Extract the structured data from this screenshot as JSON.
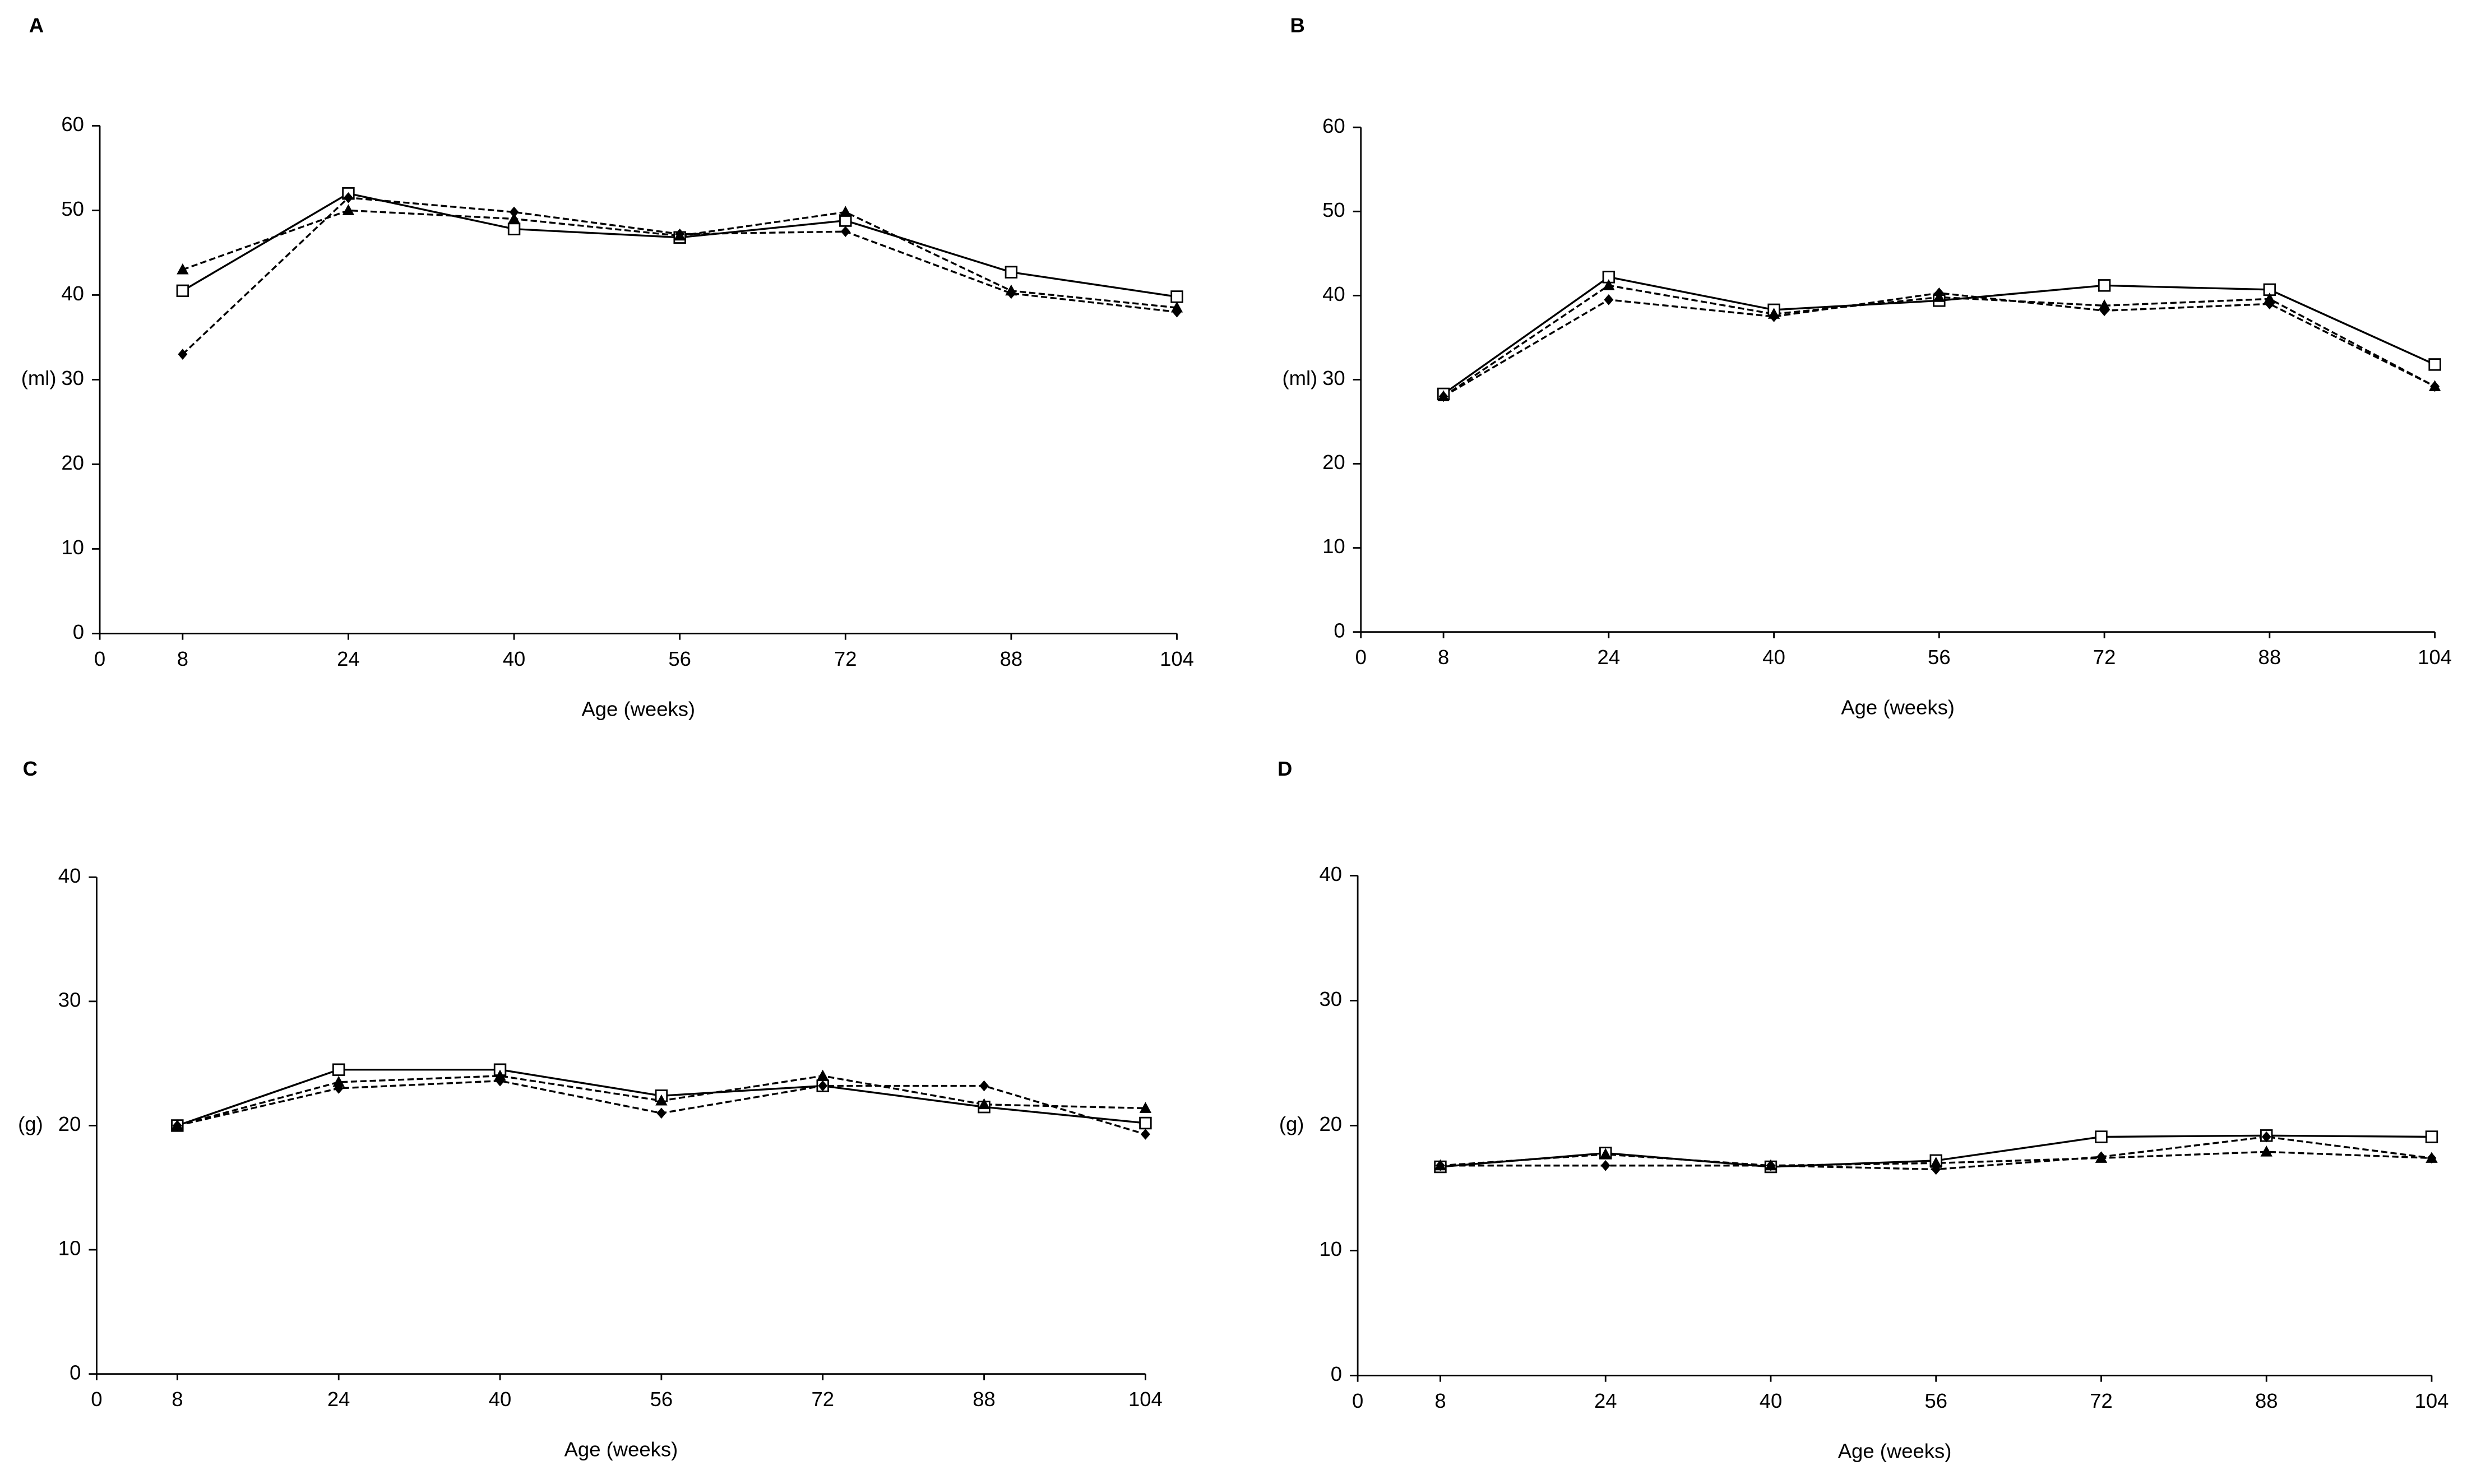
{
  "chart_data": [
    {
      "type": "line",
      "panel": "A",
      "ylabel": "(ml)",
      "xlabel": "Age (weeks)",
      "x": [
        8,
        24,
        40,
        56,
        72,
        88,
        104
      ],
      "xlim": [
        0,
        104
      ],
      "xticks": [
        0,
        8,
        24,
        40,
        56,
        72,
        88,
        104
      ],
      "ylim": [
        0,
        60
      ],
      "yticks": [
        0,
        10,
        20,
        30,
        40,
        50,
        60
      ],
      "series": [
        {
          "color": "#000000",
          "marker": "square",
          "dash": false,
          "values": [
            40.5,
            52,
            47.8,
            46.8,
            48.8,
            42.7,
            39.8
          ]
        },
        {
          "color": "#000000",
          "marker": "triangle",
          "dash": true,
          "values": [
            43,
            50,
            49,
            47,
            49.8,
            40.5,
            38.5
          ]
        },
        {
          "color": "#000000",
          "marker": "diamond",
          "dash": true,
          "values": [
            33,
            51.5,
            49.8,
            47.2,
            47.5,
            40.2,
            38
          ]
        }
      ]
    },
    {
      "type": "line",
      "panel": "B",
      "ylabel": "(ml)",
      "xlabel": "Age (weeks)",
      "x": [
        8,
        24,
        40,
        56,
        72,
        88,
        104
      ],
      "xlim": [
        0,
        104
      ],
      "xticks": [
        0,
        8,
        24,
        40,
        56,
        72,
        88,
        104
      ],
      "ylim": [
        0,
        60
      ],
      "yticks": [
        0,
        10,
        20,
        30,
        40,
        50,
        60
      ],
      "series": [
        {
          "color": "#000000",
          "marker": "square",
          "dash": false,
          "values": [
            28.3,
            42.2,
            38.3,
            39.4,
            41.2,
            40.7,
            31.8
          ]
        },
        {
          "color": "#000000",
          "marker": "triangle",
          "dash": true,
          "values": [
            28,
            41.2,
            37.8,
            39.8,
            38.8,
            39.6,
            29.2
          ]
        },
        {
          "color": "#000000",
          "marker": "diamond",
          "dash": true,
          "values": [
            28,
            39.5,
            37.5,
            40.3,
            38.2,
            39,
            29.2
          ]
        }
      ]
    },
    {
      "type": "line",
      "panel": "C",
      "ylabel": "(g)",
      "xlabel": "Age (weeks)",
      "x": [
        8,
        24,
        40,
        56,
        72,
        88,
        104
      ],
      "xlim": [
        0,
        104
      ],
      "xticks": [
        0,
        8,
        24,
        40,
        56,
        72,
        88,
        104
      ],
      "ylim": [
        0,
        40
      ],
      "yticks": [
        0,
        10,
        20,
        30,
        40
      ],
      "series": [
        {
          "color": "#000000",
          "marker": "square",
          "dash": false,
          "values": [
            20,
            24.5,
            24.5,
            22.4,
            23.2,
            21.5,
            20.2
          ]
        },
        {
          "color": "#000000",
          "marker": "triangle",
          "dash": true,
          "values": [
            20,
            23.5,
            24,
            22,
            24,
            21.7,
            21.4
          ]
        },
        {
          "color": "#000000",
          "marker": "diamond",
          "dash": true,
          "values": [
            20,
            23,
            23.6,
            21,
            23.2,
            23.2,
            19.3
          ]
        }
      ]
    },
    {
      "type": "line",
      "panel": "D",
      "ylabel": "(g)",
      "xlabel": "Age (weeks)",
      "x": [
        8,
        24,
        40,
        56,
        72,
        88,
        104
      ],
      "xlim": [
        0,
        104
      ],
      "xticks": [
        0,
        8,
        24,
        40,
        56,
        72,
        88,
        104
      ],
      "ylim": [
        0,
        40
      ],
      "yticks": [
        0,
        10,
        20,
        30,
        40
      ],
      "series": [
        {
          "color": "#000000",
          "marker": "square",
          "dash": false,
          "values": [
            16.7,
            17.8,
            16.7,
            17.2,
            19.1,
            19.2,
            19.1
          ]
        },
        {
          "color": "#000000",
          "marker": "triangle",
          "dash": true,
          "values": [
            16.8,
            17.7,
            16.8,
            17,
            17.4,
            17.9,
            17.4
          ]
        },
        {
          "color": "#000000",
          "marker": "diamond",
          "dash": true,
          "values": [
            16.8,
            16.8,
            16.8,
            16.5,
            17.5,
            19.1,
            17.4
          ]
        }
      ]
    }
  ]
}
